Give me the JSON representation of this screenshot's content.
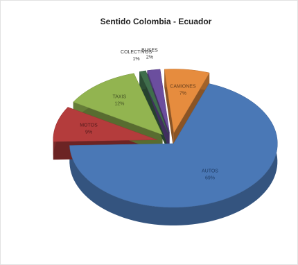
{
  "chart_data": {
    "type": "pie",
    "title": "Sentido Colombia - Ecuador",
    "categories": [
      "AUTOS",
      "MOTOS",
      "TAXIS",
      "COLECTIVOS",
      "BUSES",
      "CAMIONES"
    ],
    "values": [
      69,
      9,
      12,
      1,
      2,
      7
    ],
    "value_labels": [
      "69%",
      "9%",
      "12%",
      "1%",
      "2%",
      "7%"
    ],
    "colors": [
      "#4a78b6",
      "#b43c3c",
      "#92b450",
      "#3f6e4c",
      "#6b4e9e",
      "#e68c3e"
    ]
  }
}
